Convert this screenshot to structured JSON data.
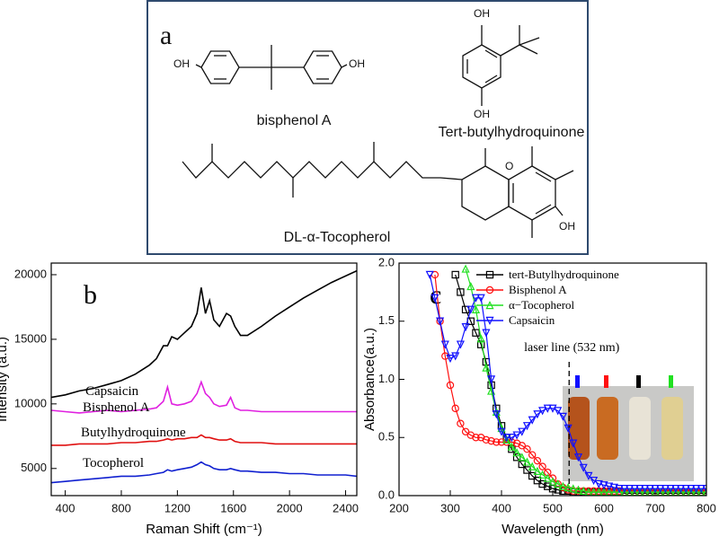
{
  "structures_panel": {
    "panel_label": "a",
    "compounds": [
      {
        "name": "bisphenol A",
        "atoms": [
          "OH",
          "OH"
        ]
      },
      {
        "name": "Tert-butylhydroquinone",
        "atoms": [
          "OH",
          "OH"
        ]
      },
      {
        "name": "DL-α-Tocopherol",
        "atoms": [
          "O",
          "OH"
        ]
      }
    ]
  },
  "chart_data": [
    {
      "type": "line",
      "panel_label": "b",
      "x_label": "Raman Shift (cm⁻¹)",
      "y_label": "Intensity (a.u.)",
      "xlim": [
        300,
        2480
      ],
      "xticks": [
        400,
        800,
        1200,
        1600,
        2000,
        2400
      ],
      "ylim": [
        2900,
        20900
      ],
      "yticks": [
        5000,
        10000,
        15000,
        20000
      ],
      "legend": "inline",
      "x": [
        300,
        400,
        500,
        600,
        700,
        800,
        900,
        1000,
        1050,
        1100,
        1130,
        1160,
        1200,
        1250,
        1300,
        1340,
        1370,
        1400,
        1430,
        1460,
        1500,
        1550,
        1580,
        1610,
        1650,
        1700,
        1800,
        1900,
        2000,
        2100,
        2200,
        2300,
        2400,
        2480
      ],
      "series": [
        {
          "name": "Capsaicin",
          "color": "#000000",
          "values": [
            10500,
            10700,
            11000,
            11200,
            11500,
            11800,
            12300,
            13000,
            13500,
            14500,
            14500,
            15200,
            15000,
            15500,
            16000,
            17000,
            19000,
            17000,
            18000,
            16500,
            16000,
            17000,
            16800,
            16000,
            15300,
            15300,
            16000,
            16800,
            17500,
            18200,
            18800,
            19400,
            19900,
            20300
          ]
        },
        {
          "name": "Bisphenol A",
          "color": "#e020e0",
          "values": [
            9500,
            9400,
            9300,
            9400,
            9500,
            9400,
            9500,
            9600,
            9700,
            10200,
            11300,
            10000,
            9900,
            10000,
            10200,
            10800,
            11700,
            10800,
            10500,
            10000,
            9800,
            9900,
            10500,
            9700,
            9500,
            9500,
            9400,
            9400,
            9400,
            9400,
            9400,
            9400,
            9400,
            9400
          ]
        },
        {
          "name": "Butylhydroquinone",
          "color": "#e01010",
          "values": [
            6800,
            6800,
            6900,
            6900,
            6900,
            7000,
            7000,
            7100,
            7100,
            7200,
            7300,
            7200,
            7300,
            7300,
            7400,
            7400,
            7600,
            7400,
            7400,
            7300,
            7200,
            7200,
            7300,
            7100,
            7000,
            7000,
            7000,
            6900,
            6900,
            6900,
            6900,
            6900,
            6900,
            6900
          ]
        },
        {
          "name": "Tocopherol",
          "color": "#1020d0",
          "values": [
            3900,
            4000,
            4100,
            4200,
            4300,
            4400,
            4400,
            4500,
            4600,
            4700,
            4900,
            4800,
            4900,
            5000,
            5100,
            5300,
            5500,
            5300,
            5200,
            5000,
            4900,
            4900,
            5000,
            4900,
            4800,
            4800,
            4700,
            4700,
            4600,
            4600,
            4500,
            4500,
            4500,
            4400
          ]
        }
      ]
    },
    {
      "type": "line",
      "panel_label": "c",
      "x_label": "Wavelength (nm)",
      "y_label": "Absorbance(a.u.)",
      "xlim": [
        200,
        800
      ],
      "xticks": [
        200,
        300,
        400,
        500,
        600,
        700,
        800
      ],
      "ylim": [
        0,
        2
      ],
      "yticks": [
        {
          "value": 0,
          "label": "0.0"
        },
        0.5,
        {
          "value": 1,
          "label": "1.0"
        },
        1.5,
        {
          "value": 2,
          "label": "2.0"
        }
      ],
      "legend": "upper right",
      "annotations": [
        {
          "text": "laser line (532 nm)",
          "x": 532
        }
      ],
      "x": [
        260,
        270,
        280,
        290,
        300,
        310,
        320,
        330,
        340,
        350,
        360,
        370,
        380,
        390,
        400,
        410,
        420,
        430,
        440,
        450,
        460,
        470,
        480,
        490,
        500,
        510,
        520,
        530,
        540,
        550,
        560,
        570,
        580,
        590,
        600,
        610,
        620,
        630,
        640,
        650,
        660,
        670,
        680,
        690,
        700,
        710,
        720,
        730,
        740,
        750,
        760,
        770,
        780,
        790,
        800
      ],
      "series": [
        {
          "name": "tert-Butylhydroquinone",
          "color": "#000000",
          "marker": "square",
          "values": [
            null,
            null,
            null,
            null,
            null,
            1.9,
            1.75,
            1.6,
            1.5,
            1.4,
            1.3,
            1.15,
            0.95,
            0.75,
            0.6,
            0.5,
            0.4,
            0.33,
            0.27,
            0.22,
            0.17,
            0.13,
            0.1,
            0.08,
            0.06,
            0.05,
            0.04,
            0.04,
            0.03,
            0.03,
            0.03,
            0.03,
            0.03,
            0.03,
            0.03,
            0.03,
            0.03,
            0.03,
            0.02,
            0.02,
            0.02,
            0.02,
            0.02,
            0.02,
            0.02,
            0.02,
            0.02,
            0.02,
            0.02,
            0.02,
            0.02,
            0.02,
            0.02,
            0.02,
            0.02
          ]
        },
        {
          "name": "Bisphenol A",
          "color": "#ff1010",
          "marker": "circle",
          "values": [
            null,
            1.9,
            1.5,
            1.2,
            0.95,
            0.75,
            0.62,
            0.55,
            0.52,
            0.5,
            0.5,
            0.48,
            0.47,
            0.46,
            0.46,
            0.46,
            0.46,
            0.45,
            0.43,
            0.4,
            0.35,
            0.3,
            0.25,
            0.2,
            0.15,
            0.1,
            0.07,
            0.05,
            0.04,
            0.04,
            0.04,
            0.04,
            0.04,
            0.04,
            0.04,
            0.04,
            0.04,
            0.04,
            0.03,
            0.03,
            0.03,
            0.03,
            0.03,
            0.03,
            0.03,
            0.03,
            0.03,
            0.03,
            0.03,
            0.03,
            0.03,
            0.03,
            0.03,
            0.03,
            0.03
          ]
        },
        {
          "name": "α−Tocopherol",
          "color": "#20e020",
          "marker": "triangle-up",
          "values": [
            null,
            null,
            null,
            null,
            null,
            null,
            null,
            1.95,
            1.8,
            1.6,
            1.35,
            1.1,
            0.9,
            0.72,
            0.58,
            0.48,
            0.42,
            0.37,
            0.33,
            0.29,
            0.25,
            0.21,
            0.18,
            0.15,
            0.12,
            0.1,
            0.08,
            0.07,
            0.06,
            0.05,
            0.04,
            0.03,
            0.03,
            0.03,
            0.03,
            0.03,
            0.03,
            0.03,
            0.03,
            0.03,
            0.03,
            0.03,
            0.03,
            0.03,
            0.03,
            0.03,
            0.03,
            0.03,
            0.03,
            0.03,
            0.03,
            0.03,
            0.03,
            0.03,
            0.03
          ]
        },
        {
          "name": "Capsaicin",
          "color": "#1010ff",
          "marker": "triangle-down",
          "values": [
            1.9,
            1.7,
            1.5,
            1.3,
            1.18,
            1.2,
            1.3,
            1.45,
            1.6,
            1.7,
            1.7,
            1.4,
            1.0,
            0.7,
            0.55,
            0.5,
            0.5,
            0.52,
            0.55,
            0.6,
            0.65,
            0.7,
            0.73,
            0.75,
            0.75,
            0.73,
            0.68,
            0.58,
            0.45,
            0.33,
            0.24,
            0.17,
            0.13,
            0.1,
            0.09,
            0.08,
            0.07,
            0.06,
            0.06,
            0.06,
            0.06,
            0.06,
            0.06,
            0.06,
            0.06,
            0.06,
            0.06,
            0.06,
            0.06,
            0.06,
            0.06,
            0.06,
            0.06,
            0.06,
            0.06
          ]
        }
      ]
    }
  ]
}
